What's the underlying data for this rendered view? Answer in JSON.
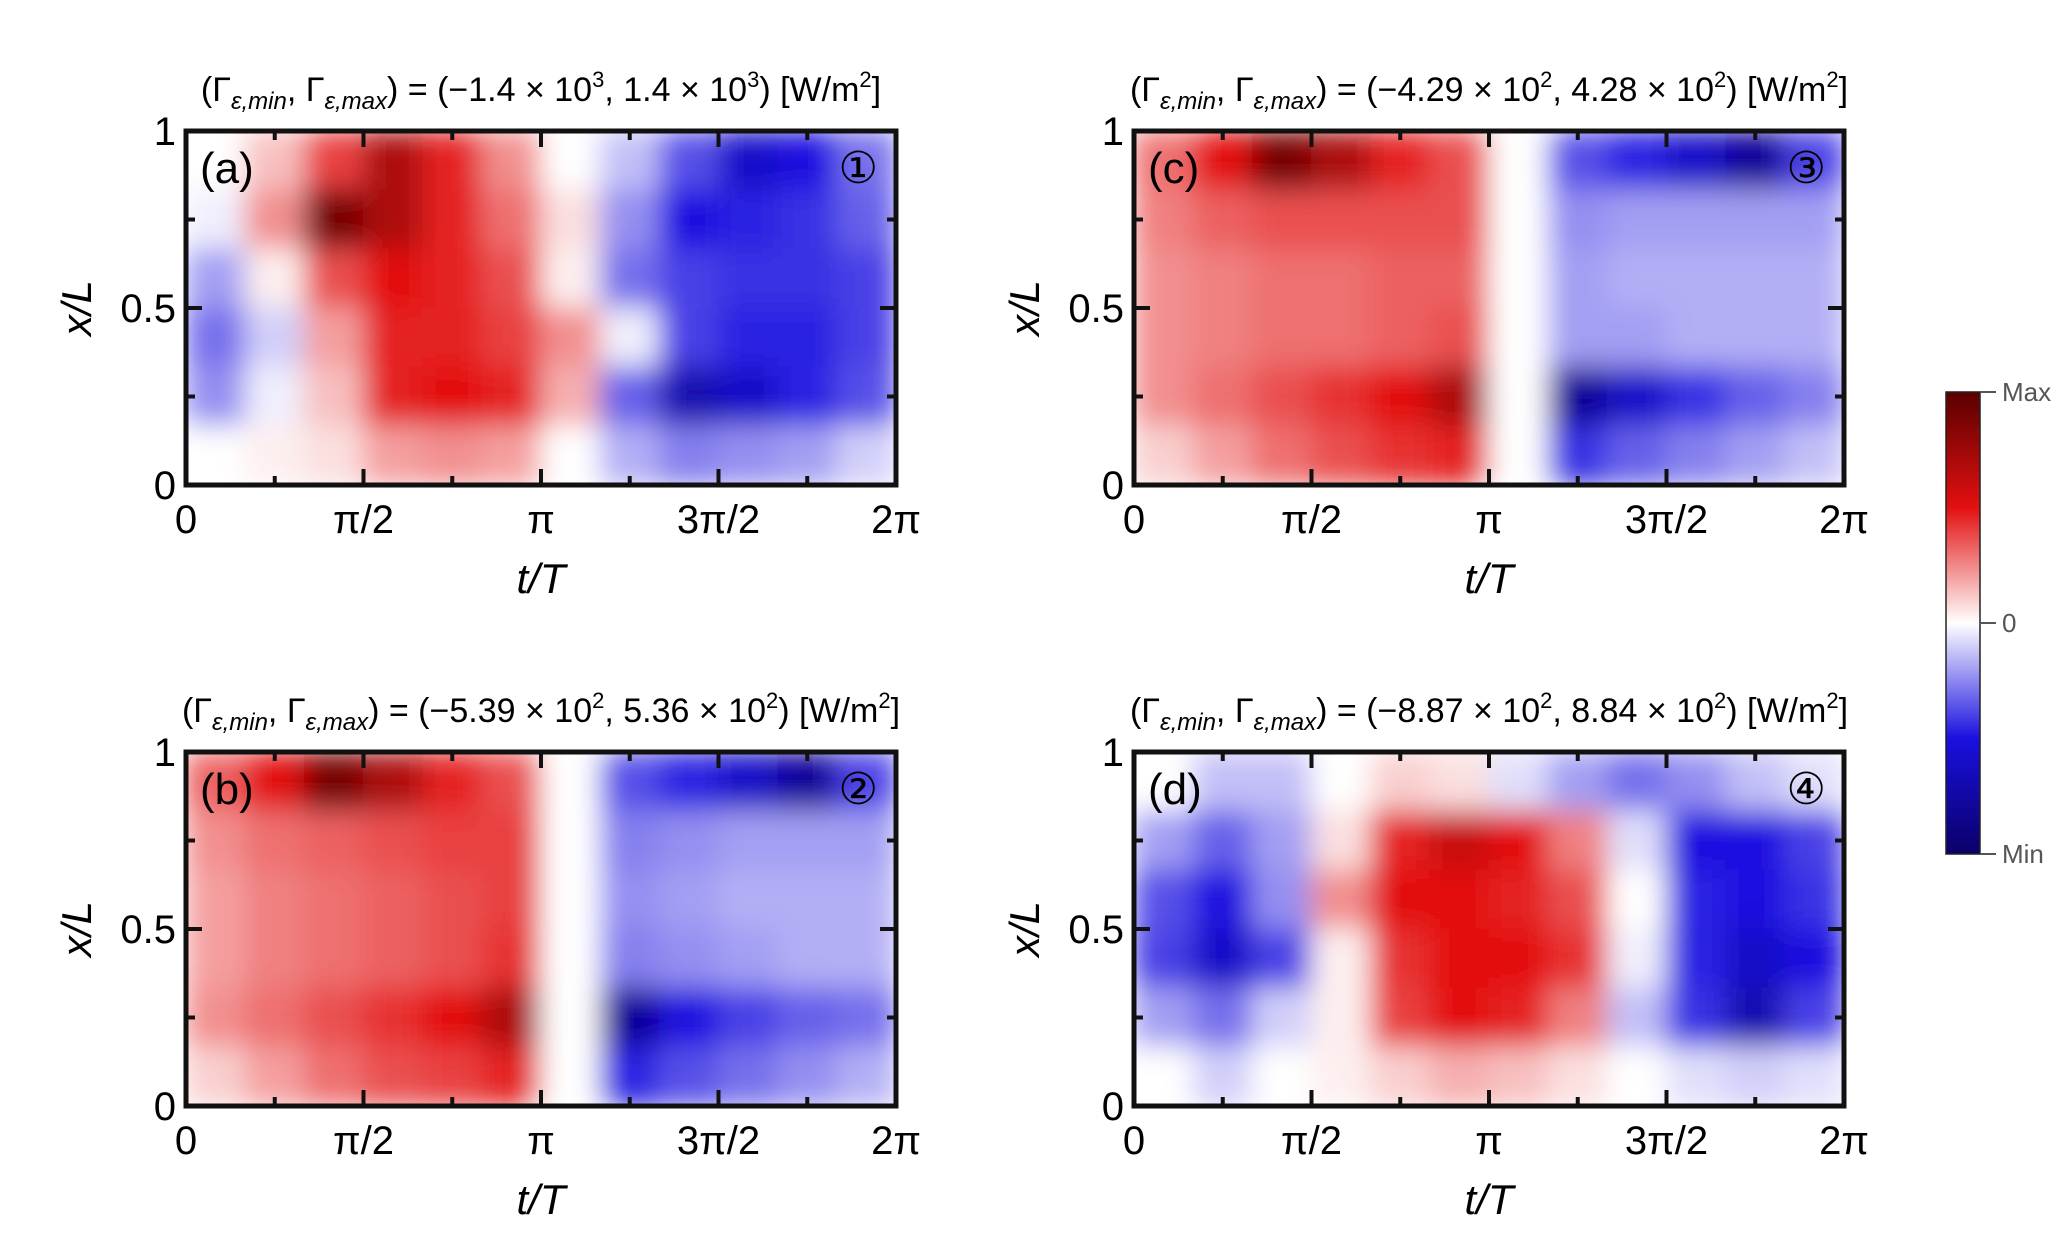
{
  "colors": {
    "max": "#5a0000",
    "positive": "#e31010",
    "zero": "#ffffff",
    "negative": "#1a10e0",
    "min": "#0a0068",
    "frame": "#111111"
  },
  "colorbar": {
    "label_max": "Max",
    "label_zero": "0",
    "label_min": "Min"
  },
  "chart_data": [
    {
      "type": "heatmap",
      "panel_label": "(a)",
      "circled_index": "①",
      "title": {
        "prefix": "(Γ",
        "sub_min": "ε,min",
        "sep": ", Γ",
        "sub_max": "ε,max",
        "eq": ") = (−1.4 × 10",
        "exp1": "3",
        "mid": ", 1.4 × 10",
        "exp2": "3",
        "suffix": ") [W/m",
        "unit_exp": "2",
        "end": "]"
      },
      "gamma_min": -1400,
      "gamma_max": 1400,
      "units": "W/m2",
      "xlabel": "t/T",
      "ylabel": "x/L",
      "x_ticks": [
        "0",
        "π/2",
        "π",
        "3π/2",
        "2π"
      ],
      "y_ticks": [
        "0",
        "0.5",
        "1"
      ],
      "xlim": [
        0,
        6.2832
      ],
      "ylim": [
        0,
        1
      ],
      "grid_values": [
        [
          0.0,
          0.2,
          0.6,
          0.85,
          0.7,
          0.35,
          0.0,
          -0.2,
          -0.55,
          -0.8,
          -0.75,
          -0.45
        ],
        [
          -0.05,
          0.35,
          0.95,
          0.85,
          0.7,
          0.45,
          0.1,
          -0.35,
          -0.75,
          -0.7,
          -0.65,
          -0.5
        ],
        [
          -0.3,
          0.05,
          0.55,
          0.75,
          0.7,
          0.55,
          0.05,
          -0.45,
          -0.6,
          -0.65,
          -0.65,
          -0.6
        ],
        [
          -0.45,
          -0.15,
          0.3,
          0.7,
          0.7,
          0.6,
          0.35,
          -0.05,
          -0.6,
          -0.7,
          -0.7,
          -0.6
        ],
        [
          -0.35,
          -0.05,
          0.2,
          0.7,
          0.75,
          0.7,
          0.25,
          -0.5,
          -0.85,
          -0.8,
          -0.7,
          -0.55
        ],
        [
          0.0,
          0.05,
          0.1,
          0.3,
          0.35,
          0.3,
          0.0,
          -0.25,
          -0.4,
          -0.35,
          -0.3,
          -0.15
        ]
      ]
    },
    {
      "type": "heatmap",
      "panel_label": "(b)",
      "circled_index": "②",
      "title": {
        "prefix": "(Γ",
        "sub_min": "ε,min",
        "sep": ", Γ",
        "sub_max": "ε,max",
        "eq": ") = (−5.39 × 10",
        "exp1": "2",
        "mid": ", 5.36 × 10",
        "exp2": "2",
        "suffix": ") [W/m",
        "unit_exp": "2",
        "end": "]"
      },
      "gamma_min": -539,
      "gamma_max": 536,
      "units": "W/m2",
      "xlabel": "t/T",
      "ylabel": "x/L",
      "x_ticks": [
        "0",
        "π/2",
        "π",
        "3π/2",
        "2π"
      ],
      "y_ticks": [
        "0",
        "0.5",
        "1"
      ],
      "xlim": [
        0,
        6.2832
      ],
      "ylim": [
        0,
        1
      ],
      "grid_values": [
        [
          0.5,
          0.75,
          0.95,
          0.85,
          0.7,
          0.55,
          0.0,
          -0.55,
          -0.7,
          -0.8,
          -0.9,
          -0.6
        ],
        [
          0.35,
          0.45,
          0.5,
          0.55,
          0.6,
          0.6,
          0.0,
          -0.4,
          -0.35,
          -0.3,
          -0.3,
          -0.3
        ],
        [
          0.3,
          0.4,
          0.45,
          0.5,
          0.55,
          0.6,
          0.0,
          -0.35,
          -0.3,
          -0.25,
          -0.25,
          -0.25
        ],
        [
          0.3,
          0.4,
          0.45,
          0.5,
          0.55,
          0.65,
          0.0,
          -0.4,
          -0.35,
          -0.3,
          -0.25,
          -0.25
        ],
        [
          0.35,
          0.45,
          0.55,
          0.65,
          0.75,
          0.85,
          0.0,
          -0.9,
          -0.75,
          -0.6,
          -0.5,
          -0.45
        ],
        [
          0.15,
          0.3,
          0.45,
          0.55,
          0.6,
          0.7,
          0.0,
          -0.7,
          -0.55,
          -0.45,
          -0.35,
          -0.25
        ]
      ]
    },
    {
      "type": "heatmap",
      "panel_label": "(c)",
      "circled_index": "③",
      "title": {
        "prefix": "(Γ",
        "sub_min": "ε,min",
        "sep": ", Γ",
        "sub_max": "ε,max",
        "eq": ") = (−4.29 × 10",
        "exp1": "2",
        "mid": ", 4.28 × 10",
        "exp2": "2",
        "suffix": ") [W/m",
        "unit_exp": "2",
        "end": "]"
      },
      "gamma_min": -429,
      "gamma_max": 428,
      "units": "W/m2",
      "xlabel": "t/T",
      "ylabel": "x/L",
      "x_ticks": [
        "0",
        "π/2",
        "π",
        "3π/2",
        "2π"
      ],
      "y_ticks": [
        "0",
        "0.5",
        "1"
      ],
      "xlim": [
        0,
        6.2832
      ],
      "ylim": [
        0,
        1
      ],
      "grid_values": [
        [
          0.45,
          0.75,
          0.95,
          0.85,
          0.7,
          0.55,
          0.0,
          -0.55,
          -0.7,
          -0.8,
          -0.9,
          -0.6
        ],
        [
          0.4,
          0.5,
          0.55,
          0.55,
          0.55,
          0.55,
          0.0,
          -0.35,
          -0.3,
          -0.3,
          -0.3,
          -0.3
        ],
        [
          0.35,
          0.4,
          0.45,
          0.45,
          0.5,
          0.5,
          0.0,
          -0.3,
          -0.25,
          -0.25,
          -0.25,
          -0.25
        ],
        [
          0.35,
          0.4,
          0.45,
          0.45,
          0.5,
          0.55,
          0.0,
          -0.3,
          -0.3,
          -0.25,
          -0.25,
          -0.25
        ],
        [
          0.35,
          0.45,
          0.55,
          0.65,
          0.75,
          0.85,
          0.0,
          -0.9,
          -0.8,
          -0.65,
          -0.5,
          -0.4
        ],
        [
          0.15,
          0.3,
          0.45,
          0.55,
          0.65,
          0.7,
          0.0,
          -0.65,
          -0.5,
          -0.4,
          -0.3,
          -0.2
        ]
      ]
    },
    {
      "type": "heatmap",
      "panel_label": "(d)",
      "circled_index": "④",
      "title": {
        "prefix": "(Γ",
        "sub_min": "ε,min",
        "sep": ", Γ",
        "sub_max": "ε,max",
        "eq": ") = (−8.87 × 10",
        "exp1": "2",
        "mid": ", 8.84 × 10",
        "exp2": "2",
        "suffix": ") [W/m",
        "unit_exp": "2",
        "end": "]"
      },
      "gamma_min": -887,
      "gamma_max": 884,
      "units": "W/m2",
      "xlabel": "t/T",
      "ylabel": "x/L",
      "x_ticks": [
        "0",
        "π/2",
        "π",
        "3π/2",
        "2π"
      ],
      "y_ticks": [
        "0",
        "0.5",
        "1"
      ],
      "xlim": [
        0,
        6.2832
      ],
      "ylim": [
        0,
        1
      ],
      "grid_values": [
        [
          0.0,
          -0.2,
          -0.2,
          0.0,
          0.15,
          0.1,
          -0.1,
          -0.3,
          -0.45,
          -0.35,
          -0.2,
          -0.1
        ],
        [
          -0.3,
          -0.5,
          -0.3,
          0.1,
          0.7,
          0.8,
          0.75,
          0.4,
          -0.1,
          -0.75,
          -0.75,
          -0.6
        ],
        [
          -0.55,
          -0.75,
          -0.35,
          0.35,
          0.75,
          0.75,
          0.7,
          0.55,
          0.0,
          -0.7,
          -0.75,
          -0.65
        ],
        [
          -0.6,
          -0.8,
          -0.6,
          0.05,
          0.65,
          0.75,
          0.75,
          0.65,
          -0.05,
          -0.7,
          -0.8,
          -0.75
        ],
        [
          -0.3,
          -0.45,
          -0.15,
          0.05,
          0.6,
          0.75,
          0.7,
          0.4,
          -0.2,
          -0.65,
          -0.85,
          -0.6
        ],
        [
          0.0,
          -0.15,
          0.0,
          0.05,
          0.15,
          0.25,
          0.2,
          0.1,
          0.0,
          -0.1,
          -0.15,
          -0.1
        ]
      ]
    }
  ]
}
